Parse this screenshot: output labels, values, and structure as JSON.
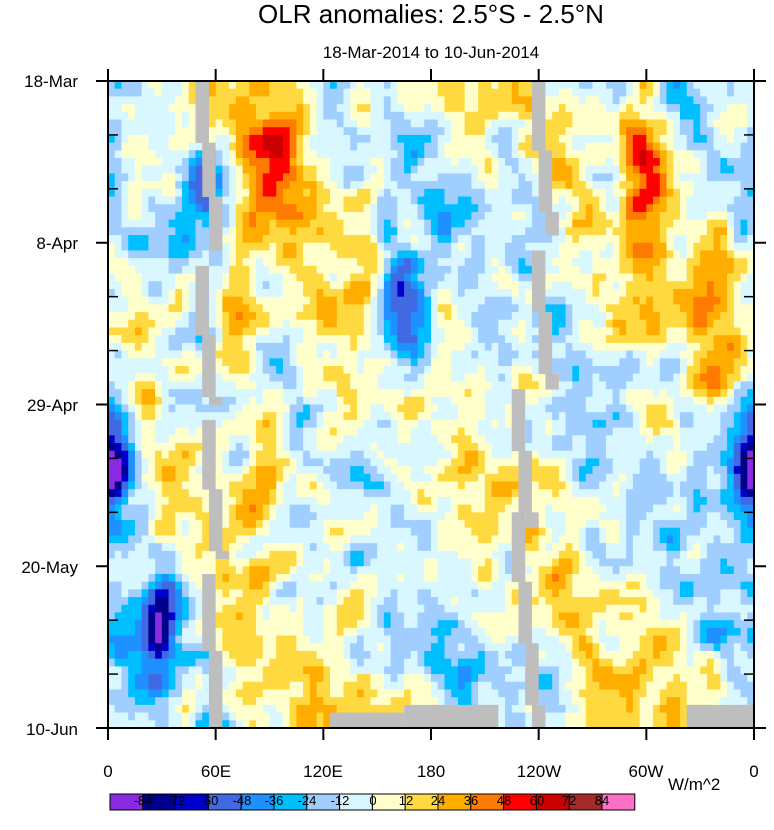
{
  "chart_data": {
    "type": "heatmap",
    "title": "OLR anomalies: 2.5°S - 2.5°N",
    "subtitle": "18-Mar-2014 to 10-Jun-2014",
    "xlabel": "",
    "ylabel": "",
    "x_ticks": [
      "0",
      "60E",
      "120E",
      "180",
      "120W",
      "60W",
      "0"
    ],
    "y_ticks": [
      "18-Mar",
      "8-Apr",
      "29-Apr",
      "20-May",
      "10-Jun"
    ],
    "colorbar": {
      "levels": [
        "-84",
        "-72",
        "-60",
        "-48",
        "-36",
        "-24",
        "-12",
        "0",
        "12",
        "24",
        "36",
        "48",
        "60",
        "72",
        "84"
      ],
      "colors": [
        "#8a2be2",
        "#00008b",
        "#0000cd",
        "#4169e1",
        "#1e90ff",
        "#00bfff",
        "#a0cfff",
        "#d9f7ff",
        "#ffffcc",
        "#ffd940",
        "#ffae00",
        "#ff7a00",
        "#ff0000",
        "#cc0000",
        "#a52a2a",
        "#ff6ec7"
      ],
      "units": "W/m^2"
    },
    "missing_color": "#bebebe",
    "description_features": [
      {
        "lon": 165,
        "day": 30,
        "value": -84
      },
      {
        "lon": 55,
        "day": 14,
        "value": -70
      },
      {
        "lon": 95,
        "day": 10,
        "value": 55
      },
      {
        "lon": 300,
        "day": 12,
        "value": 60
      },
      {
        "lon": 340,
        "day": 24,
        "value": 45
      },
      {
        "lon": 5,
        "day": 50,
        "value": -70
      },
      {
        "lon": 355,
        "day": 49,
        "value": -65
      },
      {
        "lon": 90,
        "day": 49,
        "value": 45
      },
      {
        "lon": 30,
        "day": 69,
        "value": -70
      },
      {
        "lon": 70,
        "day": 30,
        "value": 40
      }
    ]
  }
}
